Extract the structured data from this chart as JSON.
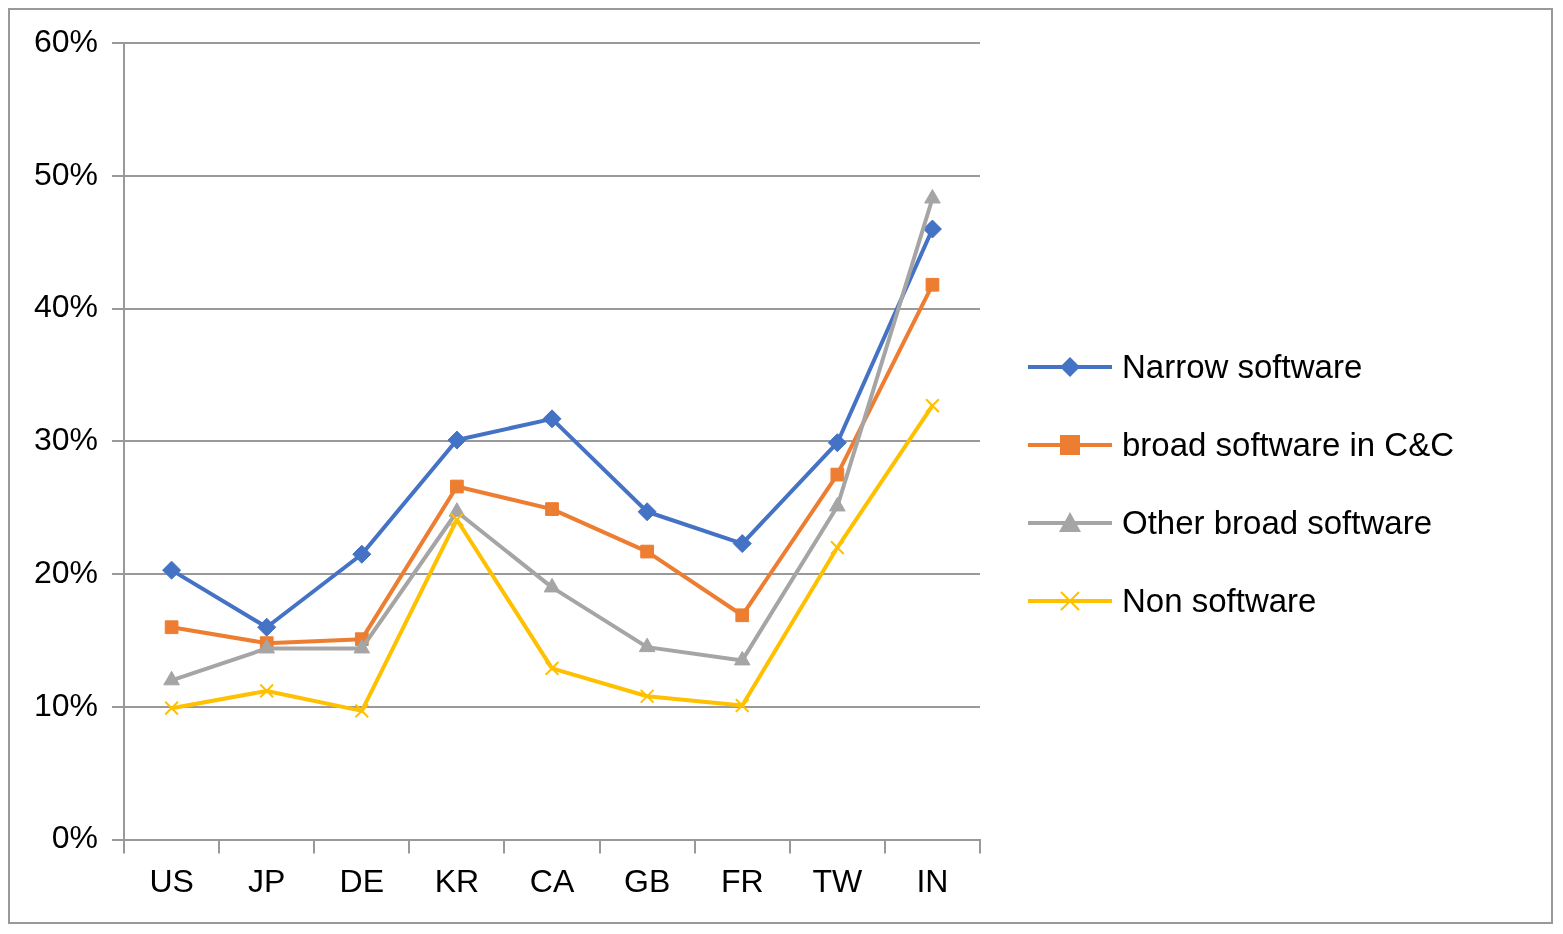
{
  "chart_data": {
    "type": "line",
    "categories": [
      "US",
      "JP",
      "DE",
      "KR",
      "CA",
      "GB",
      "FR",
      "TW",
      "IN"
    ],
    "series": [
      {
        "name": "Narrow software",
        "color": "#4472c4",
        "marker": "diamond",
        "values": [
          20.3,
          16.0,
          21.5,
          30.1,
          31.7,
          24.7,
          22.3,
          29.9,
          46.0
        ]
      },
      {
        "name": "broad software in C&C",
        "color": "#ed7d31",
        "marker": "square",
        "values": [
          16.0,
          14.8,
          15.1,
          26.6,
          24.9,
          21.7,
          16.9,
          27.5,
          41.8
        ]
      },
      {
        "name": "Other broad software",
        "color": "#a5a5a5",
        "marker": "triangle",
        "values": [
          12.0,
          14.4,
          14.4,
          24.7,
          19.0,
          14.5,
          13.5,
          25.1,
          48.3
        ]
      },
      {
        "name": "Non software",
        "color": "#ffc000",
        "marker": "cross",
        "values": [
          9.9,
          11.2,
          9.7,
          24.1,
          12.9,
          10.8,
          10.1,
          22.0,
          32.7
        ]
      }
    ],
    "ylim": [
      0,
      60
    ],
    "yticks": [
      {
        "value": 0,
        "label": "0%"
      },
      {
        "value": 10,
        "label": "10%"
      },
      {
        "value": 20,
        "label": "20%"
      },
      {
        "value": 30,
        "label": "30%"
      },
      {
        "value": 40,
        "label": "40%"
      },
      {
        "value": 50,
        "label": "50%"
      },
      {
        "value": 60,
        "label": "60%"
      }
    ],
    "grid": "y",
    "legend": "right",
    "line_style": "solid"
  }
}
